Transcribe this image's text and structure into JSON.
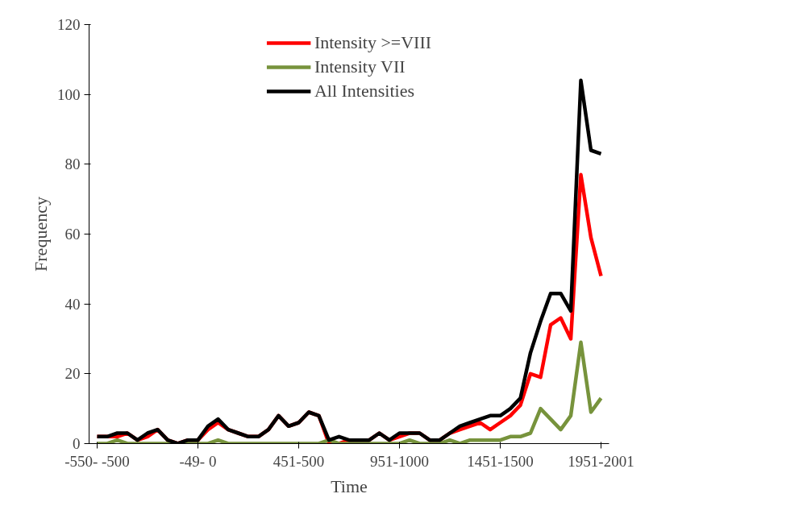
{
  "chart_data": {
    "type": "line",
    "xlabel": "Time",
    "ylabel": "Frequency",
    "categories": [
      "-550- -500",
      null,
      null,
      null,
      null,
      null,
      null,
      null,
      null,
      null,
      "-49- 0",
      null,
      null,
      null,
      null,
      null,
      null,
      null,
      null,
      null,
      "451-500",
      null,
      null,
      null,
      null,
      null,
      null,
      null,
      null,
      null,
      "951-1000",
      null,
      null,
      null,
      null,
      null,
      null,
      null,
      null,
      null,
      "1451-1500",
      null,
      null,
      null,
      null,
      null,
      null,
      null,
      null,
      null,
      "1951-2001"
    ],
    "series": [
      {
        "name": "Intensity >=VIII",
        "color": "#ff0000",
        "values": [
          2,
          2,
          2,
          3,
          1,
          2,
          4,
          1,
          0,
          1,
          1,
          4,
          6,
          4,
          3,
          2,
          2,
          4,
          8,
          5,
          6,
          9,
          8,
          0,
          0,
          1,
          1,
          1,
          3,
          1,
          2,
          3,
          3,
          1,
          1,
          3,
          4,
          5,
          6,
          4,
          6,
          8,
          11,
          20,
          19,
          34,
          36,
          30,
          77,
          59,
          48
        ]
      },
      {
        "name": "Intensity VII",
        "color": "#77933c",
        "values": [
          0,
          0,
          1,
          0,
          0,
          0,
          0,
          0,
          0,
          0,
          0,
          0,
          1,
          0,
          0,
          0,
          0,
          0,
          0,
          0,
          0,
          0,
          0,
          1,
          0,
          0,
          0,
          0,
          0,
          0,
          0,
          1,
          0,
          0,
          0,
          1,
          0,
          1,
          1,
          1,
          1,
          2,
          2,
          3,
          10,
          7,
          4,
          8,
          29,
          9,
          13
        ]
      },
      {
        "name": "All Intensities",
        "color": "#000000",
        "values": [
          2,
          2,
          3,
          3,
          1,
          3,
          4,
          1,
          0,
          1,
          1,
          5,
          7,
          4,
          3,
          2,
          2,
          4,
          8,
          5,
          6,
          9,
          8,
          1,
          2,
          1,
          1,
          1,
          3,
          1,
          3,
          3,
          3,
          1,
          1,
          3,
          5,
          6,
          7,
          8,
          8,
          10,
          13,
          26,
          35,
          43,
          43,
          38,
          104,
          84,
          83
        ]
      }
    ],
    "ylim": [
      0,
      120
    ],
    "yticks": [
      0,
      20,
      40,
      60,
      80,
      100,
      120
    ],
    "grid": false,
    "legend": "top",
    "marker": "none",
    "line_style": "solid"
  }
}
